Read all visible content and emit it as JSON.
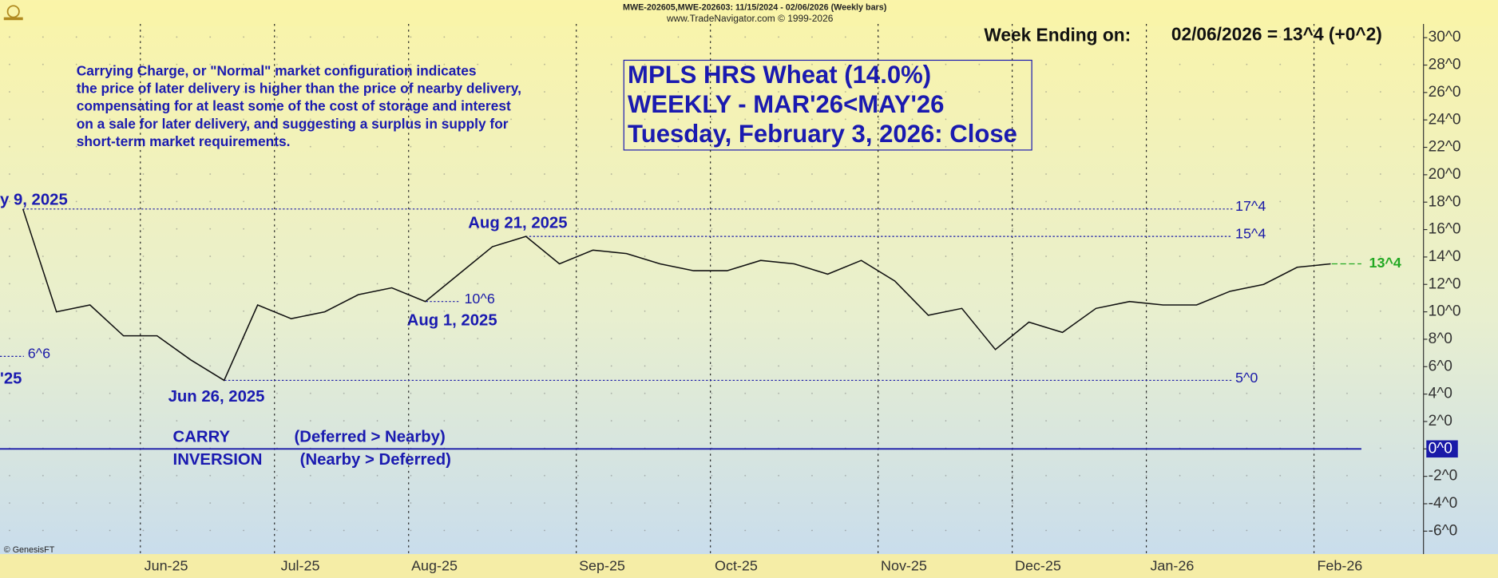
{
  "chart_data": {
    "type": "line",
    "header": "MWE-202605,MWE-202603:  11/15/2024 - 02/06/2026  (Weekly bars)",
    "source": "www.TradeNavigator.com © 1999-2026",
    "week_ending_label": "Week Ending on:",
    "week_ending_value": "02/06/2026 = 13^4 (+0^2)",
    "title_lines": [
      "MPLS HRS Wheat (14.0%)",
      "WEEKLY - MAR'26<MAY'26",
      "Tuesday, February 3, 2026: Close"
    ],
    "note_lines": [
      "Carrying Charge, or \"Normal\" market configuration indicates",
      "the price of later delivery is higher than the price of nearby delivery,",
      "compensating for at least some of the cost of storage and interest",
      "on a sale for later delivery, and suggesting a surplus in supply for",
      "short-term market requirements."
    ],
    "zone_labels": [
      "CARRY",
      "(Deferred > Nearby)",
      "INVERSION",
      "(Nearby > Deferred)"
    ],
    "date_annotations": [
      "y 9, 2025",
      "'25",
      "Jun 26, 2025",
      "Aug 1, 2025",
      "Aug 21, 2025"
    ],
    "credit": "© GenesisFT",
    "categories": [
      null,
      null,
      null,
      null,
      "Jun-25",
      null,
      null,
      null,
      "Jul-25",
      null,
      null,
      null,
      "Aug-25",
      null,
      null,
      null,
      null,
      "Sep-25",
      null,
      null,
      null,
      "Oct-25",
      null,
      null,
      null,
      null,
      "Nov-25",
      null,
      null,
      null,
      "Dec-25",
      null,
      null,
      null,
      "Jan-26",
      null,
      null,
      null,
      null,
      "Feb-26"
    ],
    "series": [
      {
        "name": "MWE-202605,MWE-202603",
        "color": "#111111",
        "values": [
          17.5,
          10.0,
          10.5,
          8.25,
          8.25,
          6.5,
          5.0,
          10.5,
          9.5,
          10.0,
          11.25,
          11.75,
          10.75,
          12.75,
          14.75,
          15.5,
          13.5,
          14.5,
          14.25,
          13.5,
          13.0,
          13.0,
          13.75,
          13.5,
          12.75,
          13.75,
          12.25,
          9.75,
          10.25,
          7.25,
          9.25,
          8.5,
          10.25,
          10.75,
          10.5,
          10.5,
          11.5,
          12.0,
          13.25,
          13.5
        ]
      }
    ],
    "ref_lines": [
      {
        "value": 17.5,
        "label": "17^4",
        "color": "#1a1aa8"
      },
      {
        "value": 15.5,
        "label": "15^4",
        "color": "#1a1aa8"
      },
      {
        "value": 10.75,
        "label": "10^6",
        "color": "#1a1aa8"
      },
      {
        "value": 6.75,
        "label": "6^6",
        "color": "#1a1aa8"
      },
      {
        "value": 5,
        "label": "5^0",
        "color": "#1a1aa8"
      },
      {
        "value": 13.5,
        "label": "13^4",
        "color": "#22a822"
      }
    ],
    "zero_line_color": "#1a1aa8",
    "ylim": [
      -7.67,
      31.0
    ],
    "yticks": [
      {
        "value": 30,
        "label": "30^0"
      },
      {
        "value": 28,
        "label": "28^0"
      },
      {
        "value": 26,
        "label": "26^0"
      },
      {
        "value": 24,
        "label": "24^0"
      },
      {
        "value": 22,
        "label": "22^0"
      },
      {
        "value": 20,
        "label": "20^0"
      },
      {
        "value": 18,
        "label": "18^0"
      },
      {
        "value": 16,
        "label": "16^0"
      },
      {
        "value": 14,
        "label": "14^0"
      },
      {
        "value": 12,
        "label": "12^0"
      },
      {
        "value": 10,
        "label": "10^0"
      },
      {
        "value": 8,
        "label": "8^0"
      },
      {
        "value": 6,
        "label": "6^0"
      },
      {
        "value": 4,
        "label": "4^0"
      },
      {
        "value": 2,
        "label": "2^0"
      },
      {
        "value": 0,
        "label": "0^0"
      },
      {
        "value": -2,
        "label": "-2^0"
      },
      {
        "value": -4,
        "label": "-4^0"
      },
      {
        "value": -6,
        "label": "-6^0"
      }
    ],
    "grid": true
  }
}
